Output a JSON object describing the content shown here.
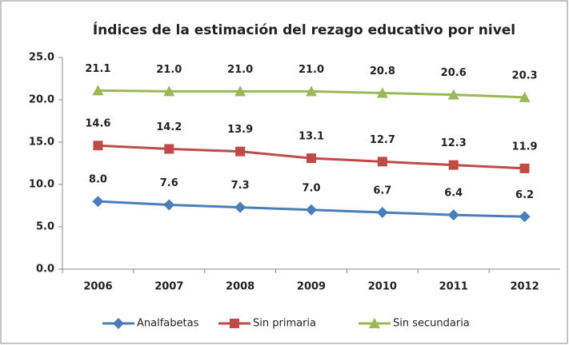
{
  "chart_data": {
    "type": "line",
    "title": "Índices de la estimación del rezago educativo por nivel",
    "categories": [
      "2006",
      "2007",
      "2008",
      "2009",
      "2010",
      "2011",
      "2012"
    ],
    "series": [
      {
        "name": "Analfabetas",
        "color": "#4a7ebb",
        "marker": "diamond",
        "values": [
          8.0,
          7.6,
          7.3,
          7.0,
          6.7,
          6.4,
          6.2
        ],
        "value_labels": [
          "8.0",
          "7.6",
          "7.3",
          "7.0",
          "6.7",
          "6.4",
          "6.2"
        ]
      },
      {
        "name": "Sin primaria",
        "color": "#be4b48",
        "marker": "square",
        "values": [
          14.6,
          14.2,
          13.9,
          13.1,
          12.7,
          12.3,
          11.9
        ],
        "value_labels": [
          "14.6",
          "14.2",
          "13.9",
          "13.1",
          "12.7",
          "12.3",
          "11.9"
        ]
      },
      {
        "name": "Sin secundaria",
        "color": "#98b954",
        "marker": "triangle",
        "values": [
          21.1,
          21.0,
          21.0,
          21.0,
          20.8,
          20.6,
          20.3
        ],
        "value_labels": [
          "21.1",
          "21.0",
          "21.0",
          "21.0",
          "20.8",
          "20.6",
          "20.3"
        ]
      }
    ],
    "ylim": [
      0,
      25
    ],
    "yticks": [
      {
        "value": 0,
        "label": "0.0"
      },
      {
        "value": 5,
        "label": "5.0"
      },
      {
        "value": 10,
        "label": "10.0"
      },
      {
        "value": 15,
        "label": "15.0"
      },
      {
        "value": 20,
        "label": "20.0"
      },
      {
        "value": 25,
        "label": "25.0"
      }
    ],
    "grid": false,
    "legend": "bottom"
  }
}
